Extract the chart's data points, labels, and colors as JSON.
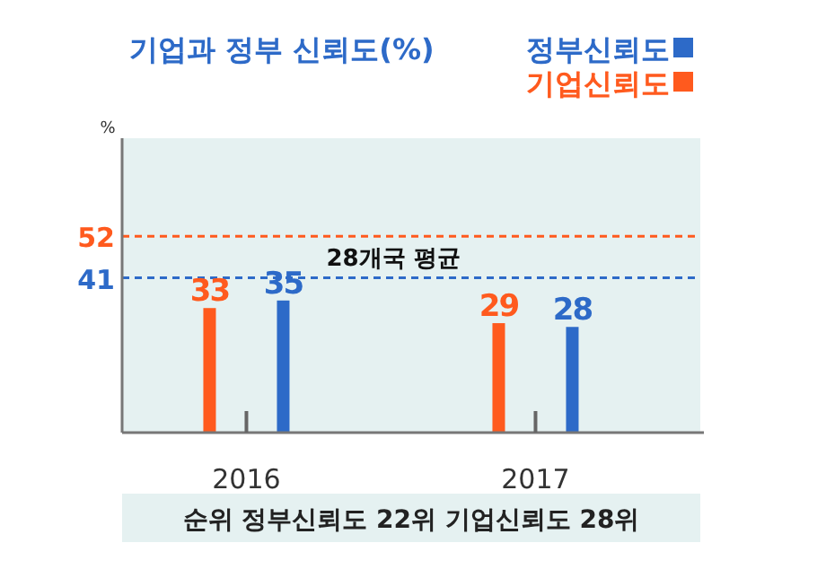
{
  "chart_data": {
    "type": "bar",
    "title": "기업과 정부 신뢰도(%)",
    "ylabel": "%",
    "categories": [
      "2016",
      "2017"
    ],
    "series": [
      {
        "name": "기업신뢰도",
        "color": "#ff5a1e",
        "values": [
          33,
          29
        ],
        "value_labels": [
          "33",
          "29"
        ]
      },
      {
        "name": "정부신뢰도",
        "color": "#2d6ac8",
        "values": [
          35,
          28
        ],
        "value_labels": [
          "35",
          "28"
        ]
      }
    ],
    "ylim": [
      0,
      78
    ],
    "tick_labels": "x",
    "legend": "top right",
    "ref_lines": [
      {
        "axis": "y",
        "value": 52,
        "label": "52",
        "color": "#ff5a1e",
        "line_style": "dashed"
      },
      {
        "axis": "y",
        "value": 41,
        "label": "41",
        "color": "#2d6ac8",
        "line_style": "dashed"
      }
    ],
    "annotations": [
      "28개국 평균",
      "순위 정부신뢰도 22위 기업신뢰도 28위"
    ]
  }
}
